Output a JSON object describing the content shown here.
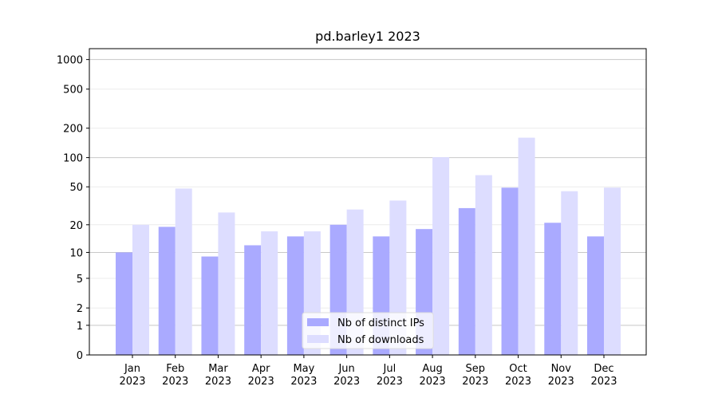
{
  "chart_data": {
    "type": "bar",
    "title": "pd.barley1 2023",
    "categories": [
      "Jan 2023",
      "Feb 2023",
      "Mar 2023",
      "Apr 2023",
      "May 2023",
      "Jun 2023",
      "Jul 2023",
      "Aug 2023",
      "Sep 2023",
      "Oct 2023",
      "Nov 2023",
      "Dec 2023"
    ],
    "series": [
      {
        "name": "Nb of distinct IPs",
        "color": "#aaaaff",
        "values": [
          10,
          19,
          9,
          12,
          15,
          20,
          15,
          18,
          30,
          49,
          21,
          15
        ]
      },
      {
        "name": "Nb of downloads",
        "color": "#ddddff",
        "values": [
          20,
          48,
          27,
          17,
          17,
          29,
          36,
          101,
          66,
          160,
          45,
          49
        ]
      }
    ],
    "yscale": "log1p",
    "ylim": [
      0,
      1290
    ],
    "yticks": [
      0,
      1,
      2,
      5,
      10,
      20,
      50,
      100,
      200,
      500,
      1000
    ],
    "grid": true,
    "legend": "lower center"
  }
}
